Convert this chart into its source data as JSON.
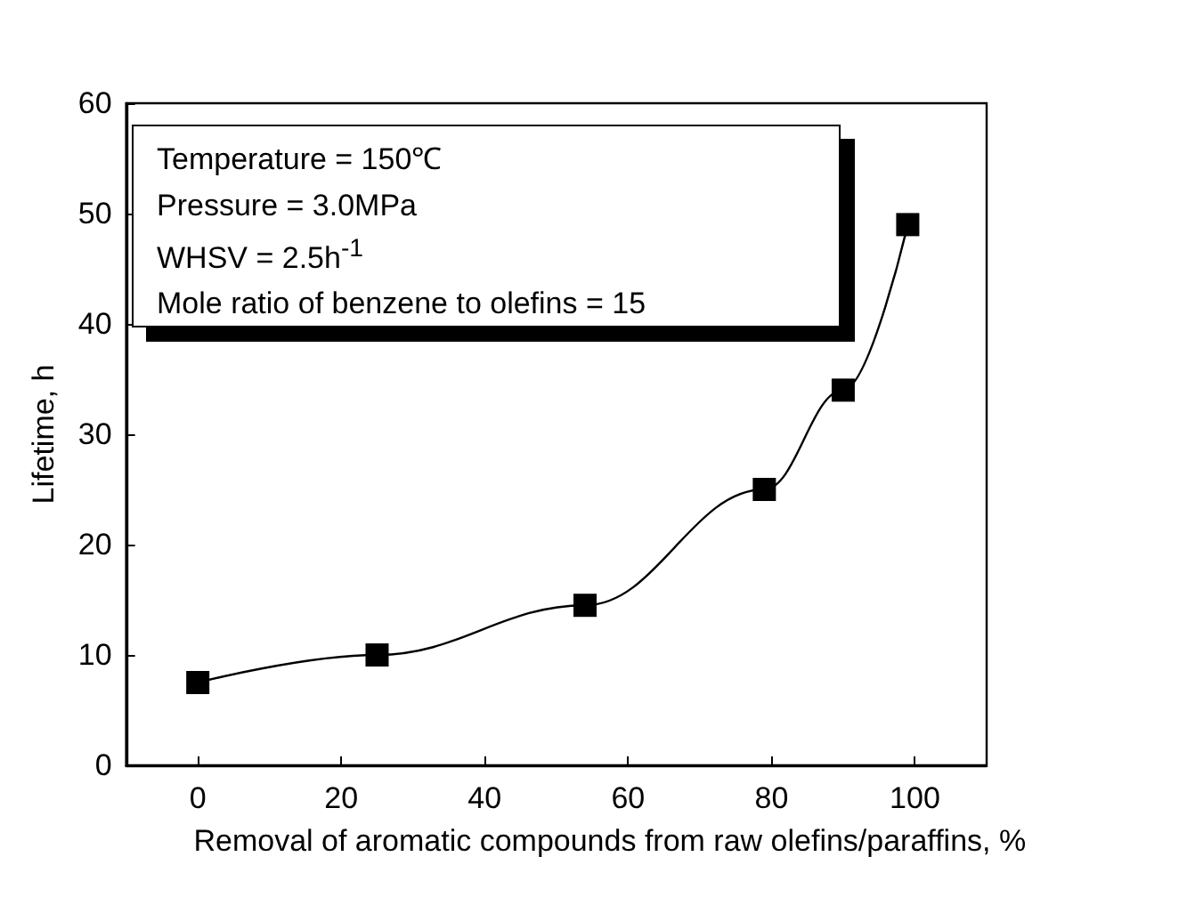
{
  "chart_data": {
    "type": "line",
    "xlabel": "Removal of aromatic compounds from raw olefins/paraffins, %",
    "ylabel": "Lifetime, h",
    "x": [
      0,
      25,
      54,
      79,
      90,
      99
    ],
    "series": [
      {
        "color": "#000000",
        "values": [
          7.5,
          10,
          14.5,
          25,
          34,
          49
        ]
      }
    ],
    "xlim": [
      -10,
      110
    ],
    "xticks": [
      0,
      20,
      40,
      60,
      80,
      100
    ],
    "ylim": [
      0,
      60
    ],
    "yticks": [
      0,
      10,
      20,
      30,
      40,
      50,
      60
    ],
    "marker": "square",
    "line_style": "solid",
    "grid": false,
    "annotations": [
      "Temperature = 150℃",
      "Pressure = 3.0MPa",
      "WHSV = 2.5h$^{-1}$",
      "Mole ratio of benzene to olefins = 15"
    ]
  }
}
